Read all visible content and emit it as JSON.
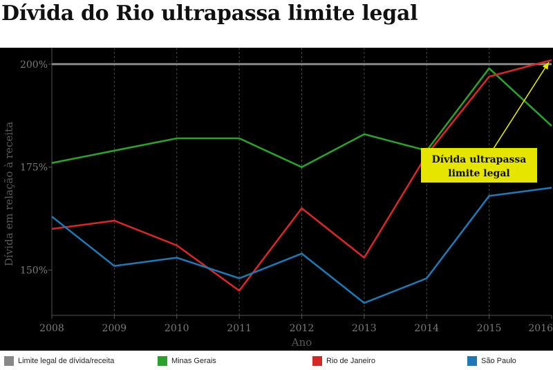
{
  "title": "Dívida do Rio ultrapassa limite legal",
  "chart_data": {
    "type": "line",
    "xlabel": "Ano",
    "ylabel": "Dívida em relação à receita",
    "x": [
      2008,
      2009,
      2010,
      2011,
      2012,
      2013,
      2014,
      2015,
      2016
    ],
    "x_tick_labels": [
      "2008",
      "2009",
      "2010",
      "2011",
      "2012",
      "2013",
      "2014",
      "2015",
      "2016"
    ],
    "y_ticks": [
      150,
      175,
      200
    ],
    "y_tick_labels": [
      "150%",
      "175%",
      "200%"
    ],
    "ylim": [
      139,
      204
    ],
    "xlim": [
      2008,
      2016
    ],
    "grid": "vertical dashed",
    "legend_position": "bottom",
    "series": [
      {
        "name": "Limite legal de dívida/receita",
        "color": "#888888",
        "values": [
          200,
          200,
          200,
          200,
          200,
          200,
          200,
          200,
          200
        ]
      },
      {
        "name": "Minas Gerais",
        "color": "#2ca02c",
        "values": [
          176,
          179,
          182,
          182,
          175,
          183,
          179,
          199,
          185
        ]
      },
      {
        "name": "Rio de Janeiro",
        "color": "#d62728",
        "values": [
          160,
          162,
          156,
          145,
          165,
          153,
          178,
          197,
          201
        ]
      },
      {
        "name": "São Paulo",
        "color": "#1f77b4",
        "values": [
          163,
          151,
          153,
          148,
          154,
          142,
          148,
          168,
          170
        ]
      }
    ],
    "annotation": {
      "text_line1": "Dívida ultrapassa",
      "text_line2": "limite legal",
      "box_color": "#e5e500",
      "arrow_color": "#e5e500",
      "arrow_target": {
        "x": 2016,
        "y": 201
      },
      "arrow_tail": {
        "x": 2014.9,
        "y": 175.5
      }
    }
  }
}
